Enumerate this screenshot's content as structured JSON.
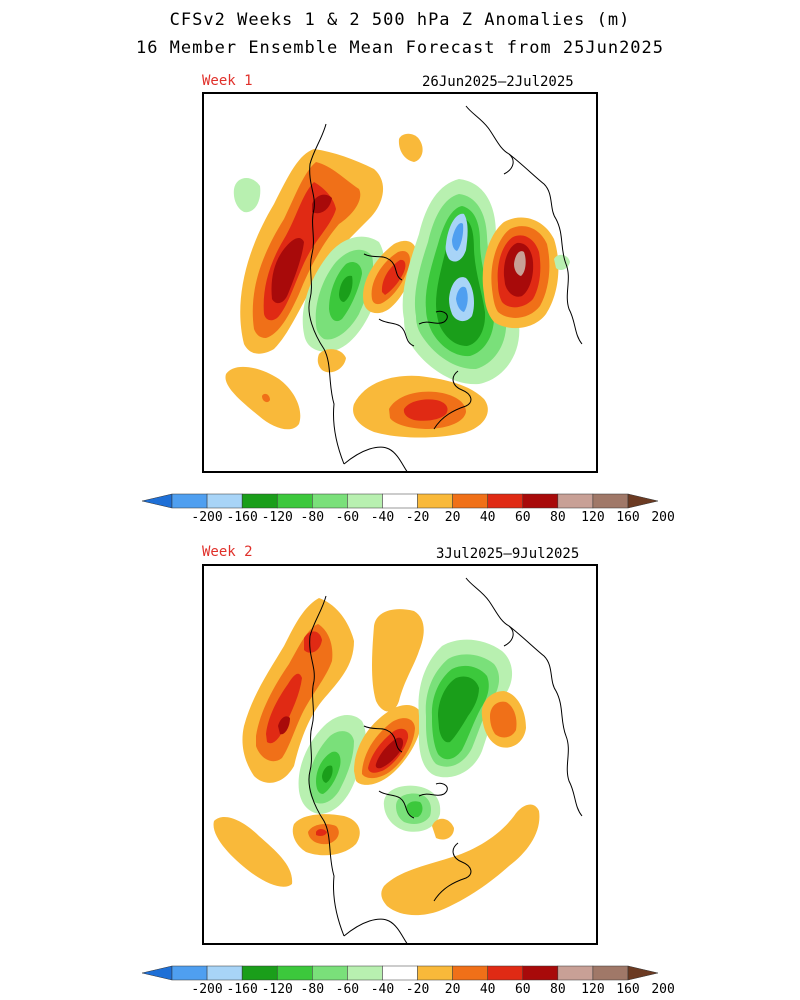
{
  "header": {
    "title_line1": "CFSv2 Weeks 1 & 2 500 hPa Z Anomalies (m)",
    "title_line2": "16 Member Ensemble Mean Forecast from 25Jun2025"
  },
  "panels": [
    {
      "week_label": "Week 1",
      "date_range": "26Jun2025–2Jul2025"
    },
    {
      "week_label": "Week 2",
      "date_range": "3Jul2025–9Jul2025"
    }
  ],
  "colorbar": {
    "labels": [
      "-200",
      "-160",
      "-120",
      "-80",
      "-60",
      "-40",
      "-20",
      "20",
      "40",
      "60",
      "80",
      "120",
      "160",
      "200"
    ],
    "colors": [
      "#1e6fd6",
      "#4f9ff0",
      "#a8d4f7",
      "#1a9e1a",
      "#3cc83c",
      "#7ae07a",
      "#b8f0b0",
      "#ffffff",
      "#f9b93a",
      "#f07018",
      "#e02a14",
      "#a80a0a",
      "#c8a096",
      "#a07868",
      "#6b3a22"
    ]
  },
  "anomaly_colors": {
    "pos_20": "#f9b93a",
    "pos_40": "#f07018",
    "pos_60": "#e02a14",
    "pos_80": "#a80a0a",
    "pos_120": "#c8a096",
    "neg_20": "#b8f0b0",
    "neg_40": "#7ae07a",
    "neg_60": "#3cc83c",
    "neg_80": "#1a9e1a",
    "neg_120": "#a8d4f7",
    "neg_160": "#4f9ff0"
  }
}
